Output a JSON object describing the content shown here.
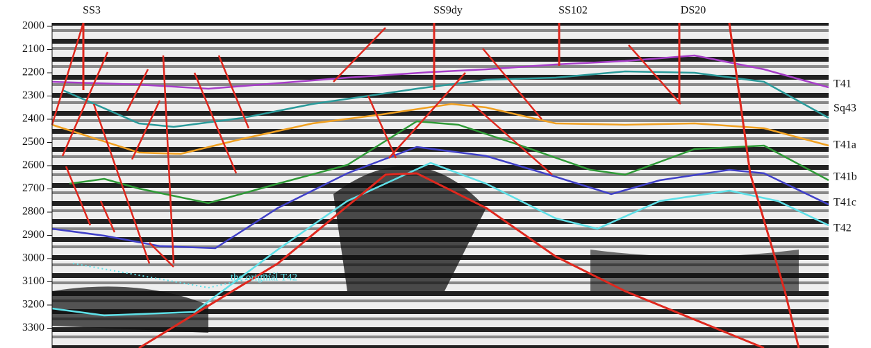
{
  "axis": {
    "ticks": [
      2000,
      2100,
      2200,
      2300,
      2400,
      2500,
      2600,
      2700,
      2800,
      2900,
      3000,
      3100,
      3200,
      3300
    ]
  },
  "wells": [
    "SS3",
    "SS9dy",
    "SS102",
    "DS20"
  ],
  "horizons": [
    {
      "label": "T41",
      "color": "#a63ec8"
    },
    {
      "label": "Sq43",
      "color": "#2a9a9a"
    },
    {
      "label": "T41a",
      "color": "#f0a020"
    },
    {
      "label": "T41b",
      "color": "#2e9a36"
    },
    {
      "label": "T41c",
      "color": "#4040c8"
    },
    {
      "label": "T42",
      "color": "#5ee0e8"
    }
  ],
  "annotation": "the original T42",
  "fault_color": "#e0281e"
}
